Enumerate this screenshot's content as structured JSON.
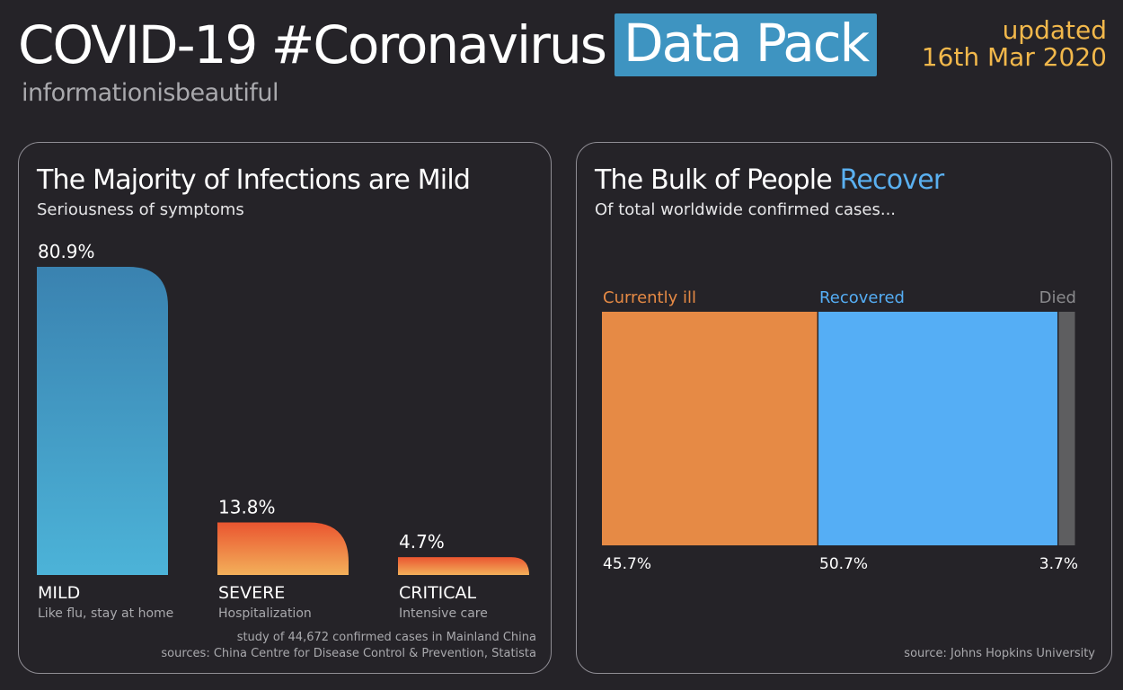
{
  "header": {
    "title_main": "COVID-19 #Coronavirus",
    "title_highlight": "Data Pack",
    "brand": "informationisbeautiful",
    "updated_label": "updated",
    "updated_date": "16th Mar 2020",
    "highlight_color": "#3e94c1",
    "updated_color": "#f2b84b"
  },
  "left_panel": {
    "title": "The Majority of Infections are Mild",
    "subtitle": "Seriousness of symptoms",
    "footnote_line1": "study of 44,672 confirmed cases in Mainland China",
    "footnote_line2": "sources: China Centre for Disease Control & Prevention, Statista"
  },
  "right_panel": {
    "title_prefix": "The Bulk of People ",
    "title_highlight": "Recover",
    "subtitle": "Of total worldwide confirmed cases...",
    "footnote": "source: Johns Hopkins University"
  },
  "chart_data": [
    {
      "type": "bar",
      "categories": [
        "MILD",
        "SEVERE",
        "CRITICAL"
      ],
      "descriptions": [
        "Like flu, stay at home",
        "Hospitalization",
        "Intensive care"
      ],
      "values": [
        80.9,
        13.8,
        4.7
      ],
      "value_labels": [
        "80.9%",
        "13.8%",
        "4.7%"
      ],
      "colors": [
        "#4aaed4",
        "#f07a3a",
        "#f07a3a"
      ],
      "ylim": [
        0,
        80.9
      ]
    },
    {
      "type": "bar",
      "categories": [
        "Currently ill",
        "Recovered",
        "Died"
      ],
      "values": [
        45.7,
        50.7,
        3.7
      ],
      "value_labels": [
        "45.7%",
        "50.7%",
        "3.7%"
      ],
      "colors": [
        "#e68a45",
        "#55aef5",
        "#5e5e60"
      ],
      "label_colors": [
        "#e68a45",
        "#55aef5",
        "#8a8a8d"
      ]
    }
  ]
}
